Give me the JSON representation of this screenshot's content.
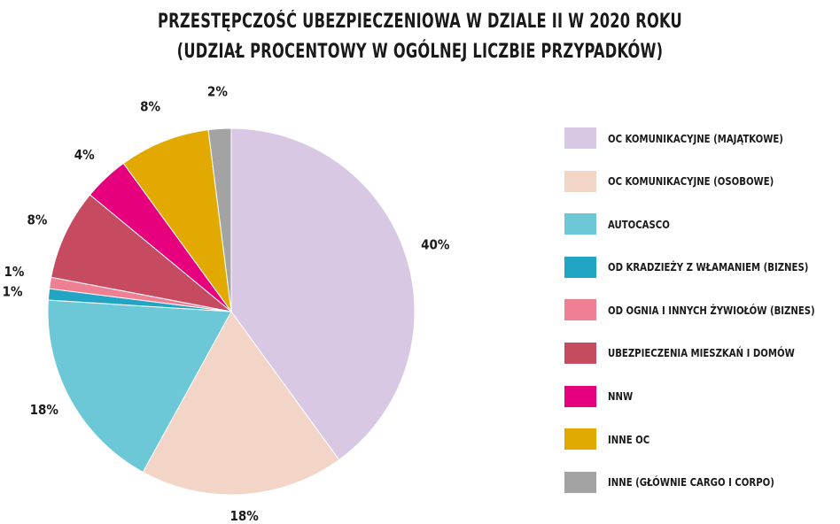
{
  "chart_data": {
    "type": "pie",
    "title": [
      "PRZESTĘPCZOŚĆ UBEZPIECZENIOWA W DZIALE II W 2020 ROKU",
      "(UDZIAŁ PROCENTOWY W OGÓLNEJ LICZBIE PRZYPADKÓW)"
    ],
    "unit": "%",
    "slices": [
      {
        "label": "OC KOMUNIKACYJNE (MAJĄTKOWE)",
        "value": 40,
        "color": "#d8c8e4"
      },
      {
        "label": "OC KOMUNIKACYJNE (OSOBOWE)",
        "value": 18,
        "color": "#f3d5c8"
      },
      {
        "label": "AUTOCASCO",
        "value": 18,
        "color": "#6cc7d6"
      },
      {
        "label": "OD KRADZIEŻY Z WŁAMANIEM (BIZNES)",
        "value": 1,
        "color": "#22a4c4"
      },
      {
        "label": "OD OGNIA I INNYCH ŻYWIOŁÓW (BIZNES)",
        "value": 1,
        "color": "#ef7f93"
      },
      {
        "label": "UBEZPIECZENIA MIESZKAŃ I DOMÓW",
        "value": 8,
        "color": "#c64a60"
      },
      {
        "label": "NNW",
        "value": 4,
        "color": "#e6007e"
      },
      {
        "label": "INNE OC",
        "value": 8,
        "color": "#e2aa00"
      },
      {
        "label": "INNE (GŁÓWNIE CARGO I CORPO)",
        "value": 2,
        "color": "#a3a3a3"
      }
    ],
    "legend_position": "right"
  }
}
